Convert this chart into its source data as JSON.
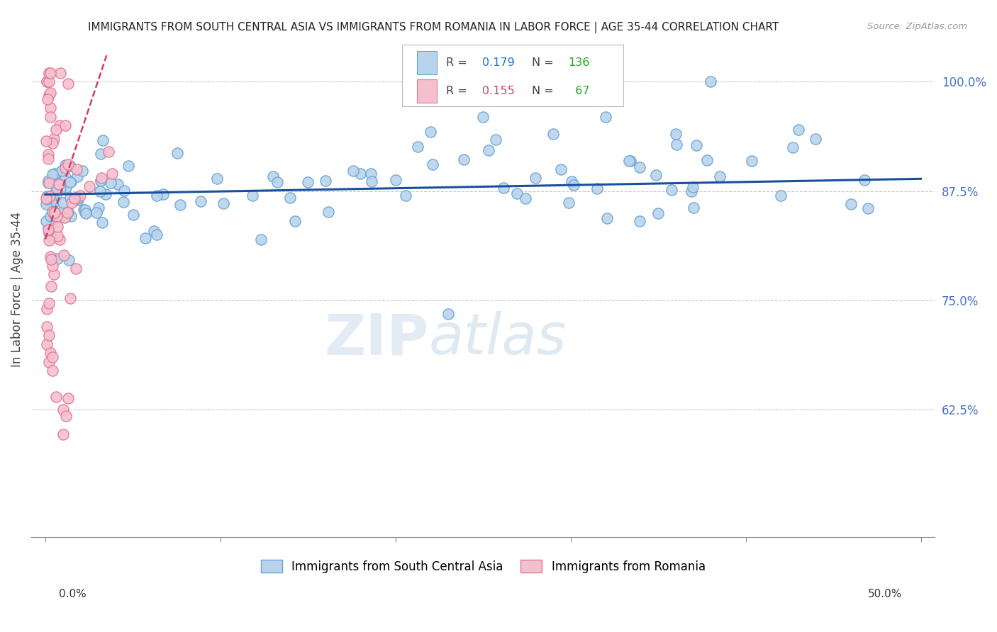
{
  "title": "IMMIGRANTS FROM SOUTH CENTRAL ASIA VS IMMIGRANTS FROM ROMANIA IN LABOR FORCE | AGE 35-44 CORRELATION CHART",
  "source": "Source: ZipAtlas.com",
  "ylabel": "In Labor Force | Age 35-44",
  "xlim": [
    0.0,
    0.5
  ],
  "ylim": [
    0.48,
    1.04
  ],
  "blue_R": 0.179,
  "blue_N": 136,
  "pink_R": 0.155,
  "pink_N": 67,
  "blue_color": "#b8d4ed",
  "blue_edge": "#6aa3d4",
  "pink_color": "#f5c0ce",
  "pink_edge": "#e07898",
  "trend_blue": "#1a4f9c",
  "trend_pink": "#d04060",
  "legend_blue_R_color": "#2271d4",
  "legend_blue_N_color": "#22aa22",
  "legend_pink_R_color": "#d04060",
  "legend_pink_N_color": "#22aa22",
  "right_ytick_color": "#4472c4",
  "grid_color": "#c8c8c8",
  "background_color": "#ffffff",
  "blue_legend_label": "Immigrants from South Central Asia",
  "pink_legend_label": "Immigrants from Romania"
}
